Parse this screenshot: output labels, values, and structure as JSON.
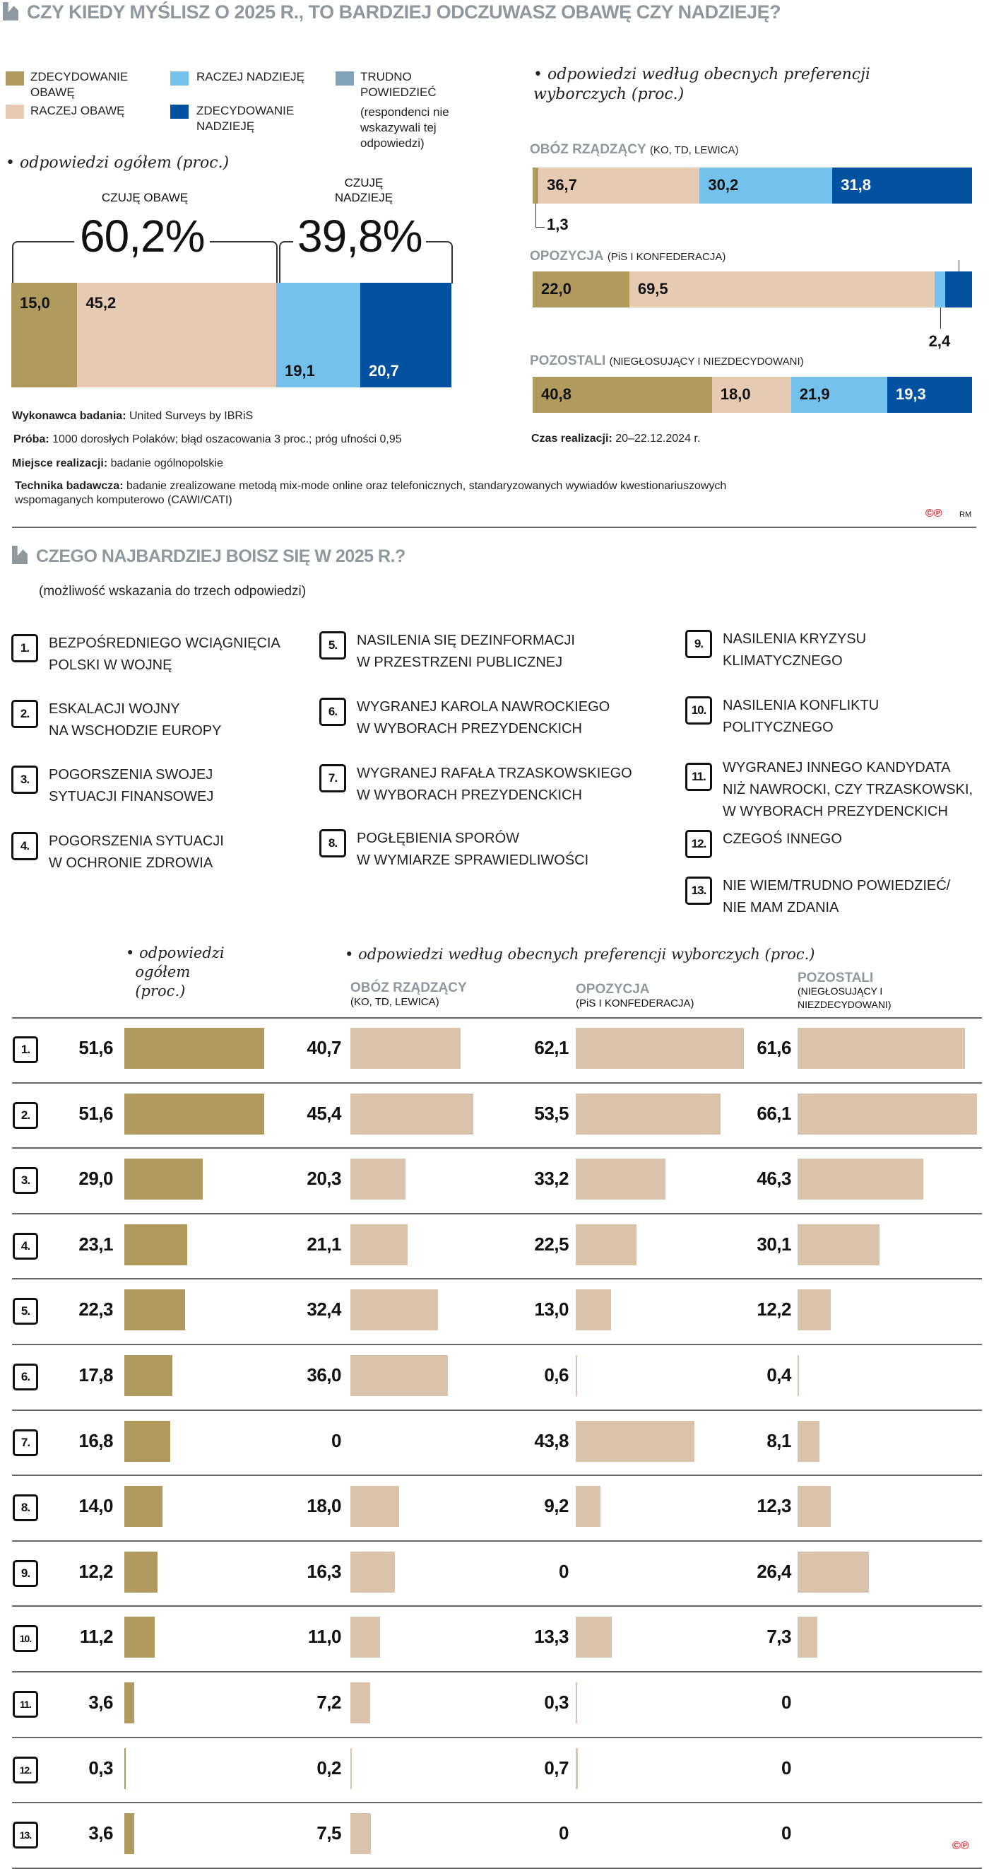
{
  "section1": {
    "title": "CZY KIEDY MYŚLISZ O 2025 R., TO BARDZIEJ ODCZUWASZ OBAWĘ CZY NADZIEJĘ?",
    "legend": [
      {
        "label": "ZDECYDOWANIE OBAWĘ",
        "color": "#b09a5e"
      },
      {
        "label": "RACZEJ OBAWĘ",
        "color": "#e6cbb2"
      },
      {
        "label": "RACZEJ NADZIEJĘ",
        "color": "#74c2ec"
      },
      {
        "label": "ZDECYDOWANIE NADZIEJĘ",
        "color": "#0352a1"
      },
      {
        "label": "TRUDNO POWIEDZIEĆ",
        "color": "#7fa3b8"
      }
    ],
    "legend_note": "(respondenci nie wskazywali tej odpowiedzi)",
    "overall_subtitle": "odpowiedzi ogółem (proc.)",
    "groups_subtitle": "odpowiedzi według obecnych preferencji wyborczych (proc.)",
    "fear_label": "CZUJĘ OBAWĘ",
    "fear_total": "60,2%",
    "hope_label": "CZUJĘ NADZIEJĘ",
    "hope_total": "39,8%",
    "meta": {
      "contractor_label": "Wykonawca badania:",
      "contractor": "United Surveys by IBRiS",
      "sample_label": "Próba:",
      "sample": "1000 dorosłych Polaków; błąd oszacowania 3 proc.; próg ufności 0,95",
      "place_label": "Miejsce realizacji:",
      "place": "badanie ogólnopolskie",
      "technique_label": "Technika badawcza:",
      "technique_1": "badanie zrealizowane metodą mix-mode online oraz telefonicznych, standaryzowanych wywiadów kwestionariuszowych",
      "technique_2": "wspomaganych komputerowo (CAWI/CATI)",
      "time_label": "Czas realizacji:",
      "time": "20–22.12.2024 r."
    },
    "credit": "RM"
  },
  "section2": {
    "title": "CZEGO NAJBARDZIEJ BOISZ SIĘ W 2025 R.?",
    "subtitle": "(możliwość wskazania do trzech odpowiedzi)",
    "items": [
      {
        "num": "1.",
        "lines": [
          "BEZPOŚREDNIEGO WCIĄGNIĘCIA",
          "POLSKI W WOJNĘ"
        ]
      },
      {
        "num": "2.",
        "lines": [
          "ESKALACJI WOJNY",
          "NA WSCHODZIE EUROPY"
        ]
      },
      {
        "num": "3.",
        "lines": [
          "POGORSZENIA SWOJEJ",
          "SYTUACJI FINANSOWEJ"
        ]
      },
      {
        "num": "4.",
        "lines": [
          "POGORSZENIA SYTUACJI",
          "W OCHRONIE ZDROWIA"
        ]
      },
      {
        "num": "5.",
        "lines": [
          "NASILENIA SIĘ DEZINFORMACJI",
          "W PRZESTRZENI PUBLICZNEJ"
        ]
      },
      {
        "num": "6.",
        "lines": [
          "WYGRANEJ KAROLA NAWROCKIEGO",
          "W WYBORACH PREZYDENCKICH"
        ]
      },
      {
        "num": "7.",
        "lines": [
          "WYGRANEJ RAFAŁA TRZASKOWSKIEGO",
          "W WYBORACH PREZYDENCKICH"
        ]
      },
      {
        "num": "8.",
        "lines": [
          "POGŁĘBIENIA SPORÓW",
          "W WYMIARZE SPRAWIEDLIWOŚCI"
        ]
      },
      {
        "num": "9.",
        "lines": [
          "NASILENIA KRYZYSU",
          "KLIMATYCZNEGO"
        ]
      },
      {
        "num": "10.",
        "lines": [
          "NASILENIA KONFLIKTU",
          "POLITYCZNEGO"
        ]
      },
      {
        "num": "11.",
        "lines": [
          "WYGRANEJ INNEGO KANDYDATA",
          "NIŻ NAWROCKI, CZY TRZASKOWSKI,",
          "W WYBORACH PREZYDENCKICH"
        ]
      },
      {
        "num": "12.",
        "lines": [
          "CZEGOŚ INNEGO"
        ]
      },
      {
        "num": "13.",
        "lines": [
          "NIE WIEM/TRUDNO POWIEDZIEĆ/",
          "NIE MAM ZDANIA"
        ]
      }
    ],
    "overall_header": [
      "odpowiedzi",
      "ogółem",
      "(proc.)"
    ],
    "groups_header": "odpowiedzi według obecnych preferencji wyborczych (proc.)"
  },
  "chart_data": [
    {
      "type": "bar",
      "stacked": true,
      "orientation": "horizontal",
      "title": "odpowiedzi ogółem (proc.)",
      "categories": [
        "ogółem"
      ],
      "series": [
        {
          "name": "ZDECYDOWANIE OBAWĘ",
          "color": "#b09a5e",
          "values": [
            15.0
          ]
        },
        {
          "name": "RACZEJ OBAWĘ",
          "color": "#e6cbb2",
          "values": [
            45.2
          ]
        },
        {
          "name": "RACZEJ NADZIEJĘ",
          "color": "#74c2ec",
          "values": [
            19.1
          ]
        },
        {
          "name": "ZDECYDOWANIE NADZIEJĘ",
          "color": "#0352a1",
          "values": [
            20.7
          ]
        }
      ],
      "annotations": [
        {
          "label": "CZUJĘ OBAWĘ",
          "value": "60,2%"
        },
        {
          "label": "CZUJĘ NADZIEJĘ",
          "value": "39,8%"
        }
      ]
    },
    {
      "type": "bar",
      "stacked": true,
      "orientation": "horizontal",
      "title": "odpowiedzi według obecnych preferencji wyborczych (proc.)",
      "categories": [
        {
          "name": "OBÓZ RZĄDZĄCY",
          "sub": "(KO, TD, LEWICA)"
        },
        {
          "name": "OPOZYCJA",
          "sub": "(PiS I KONFEDERACJA)"
        },
        {
          "name": "POZOSTALI",
          "sub": "(NIEGŁOSUJĄCY I NIEZDECYDOWANI)"
        }
      ],
      "series": [
        {
          "name": "ZDECYDOWANIE OBAWĘ",
          "color": "#b09a5e",
          "values": [
            1.3,
            22.0,
            40.8
          ]
        },
        {
          "name": "RACZEJ OBAWĘ",
          "color": "#e6cbb2",
          "values": [
            36.7,
            69.5,
            18.0
          ]
        },
        {
          "name": "RACZEJ NADZIEJĘ",
          "color": "#74c2ec",
          "values": [
            30.2,
            2.4,
            21.9
          ]
        },
        {
          "name": "ZDECYDOWANIE NADZIEJĘ",
          "color": "#0352a1",
          "values": [
            31.8,
            6.1,
            19.3
          ]
        }
      ]
    },
    {
      "type": "bar",
      "orientation": "horizontal",
      "title": "CZEGO NAJBARDZIEJ BOISZ SIĘ W 2025 R.?",
      "categories": [
        "1.",
        "2.",
        "3.",
        "4.",
        "5.",
        "6.",
        "7.",
        "8.",
        "9.",
        "10.",
        "11.",
        "12.",
        "13."
      ],
      "series": [
        {
          "name": "odpowiedzi ogółem (proc.)",
          "color": "#b09a5e",
          "values": [
            51.6,
            51.6,
            29.0,
            23.1,
            22.3,
            17.8,
            16.8,
            14.0,
            12.2,
            11.2,
            3.6,
            0.3,
            3.6
          ]
        },
        {
          "name": "OBÓZ RZĄDZĄCY",
          "sub": "(KO, TD, LEWICA)",
          "color": "#dbc2ab",
          "values": [
            40.7,
            45.4,
            20.3,
            21.1,
            32.4,
            36.0,
            0,
            18.0,
            16.3,
            11.0,
            7.2,
            0.2,
            7.5
          ]
        },
        {
          "name": "OPOZYCJA",
          "sub": "(PiS I KONFEDERACJA)",
          "color": "#dbc2ab",
          "values": [
            62.1,
            53.5,
            33.2,
            22.5,
            13.0,
            0.6,
            43.8,
            9.2,
            0,
            13.3,
            0.3,
            0.7,
            0
          ]
        },
        {
          "name": "POZOSTALI",
          "sub": "(NIEGŁOSUJĄCY I NIEZDECYDOWANI)",
          "color": "#dbc2ab",
          "values": [
            61.6,
            66.1,
            46.3,
            30.1,
            12.2,
            0.4,
            8.1,
            12.3,
            26.4,
            7.3,
            0,
            0,
            0
          ]
        }
      ]
    }
  ]
}
